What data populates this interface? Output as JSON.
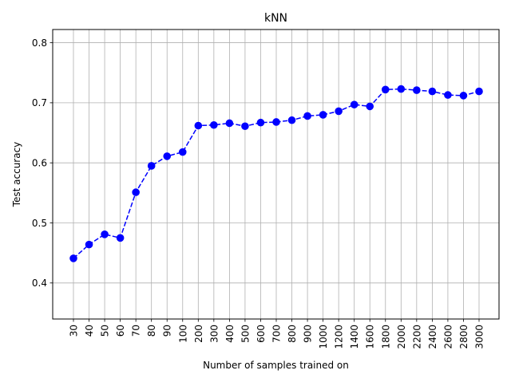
{
  "chart_data": {
    "type": "line",
    "title": "kNN",
    "xlabel": "Number of samples trained on",
    "ylabel": "Test accuracy",
    "categories": [
      "30",
      "40",
      "50",
      "60",
      "70",
      "80",
      "90",
      "100",
      "200",
      "300",
      "400",
      "500",
      "600",
      "700",
      "800",
      "900",
      "1000",
      "1200",
      "1400",
      "1600",
      "1800",
      "2000",
      "2200",
      "2400",
      "2600",
      "2800",
      "3000"
    ],
    "series": [
      {
        "values": [
          0.441,
          0.464,
          0.481,
          0.475,
          0.551,
          0.595,
          0.611,
          0.618,
          0.662,
          0.663,
          0.666,
          0.661,
          0.667,
          0.668,
          0.671,
          0.678,
          0.68,
          0.686,
          0.697,
          0.694,
          0.722,
          0.723,
          0.721,
          0.719,
          0.713,
          0.712,
          0.719
        ],
        "color": "#0000ff",
        "line_style": "dashed",
        "marker": "circle"
      }
    ],
    "yticks": [
      "0.4",
      "0.5",
      "0.6",
      "0.7",
      "0.8"
    ],
    "ylim": [
      0.34,
      0.822
    ],
    "grid": true
  }
}
